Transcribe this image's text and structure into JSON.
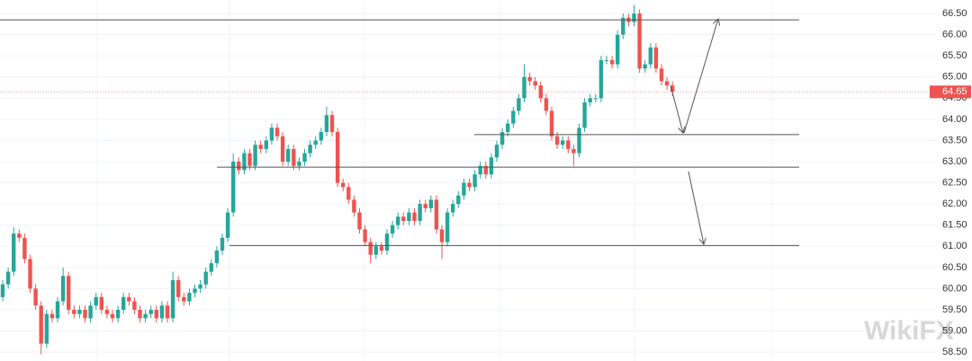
{
  "chart_data": {
    "type": "candlestick",
    "open": [
      59.8,
      60.1,
      60.4,
      61.3,
      61.2,
      60.7,
      60.0,
      59.6,
      58.7,
      59.4,
      59.3,
      59.7,
      60.3,
      59.5,
      59.4,
      59.5,
      59.3,
      59.6,
      59.8,
      59.5,
      59.4,
      59.3,
      59.5,
      59.8,
      59.7,
      59.5,
      59.3,
      59.4,
      59.5,
      59.3,
      59.6,
      59.3,
      60.2,
      59.8,
      59.7,
      59.9,
      60.0,
      60.1,
      60.4,
      60.6,
      60.9,
      61.2,
      61.8,
      63.0,
      62.8,
      63.2,
      62.9,
      63.4,
      63.3,
      63.5,
      63.8,
      63.6,
      63.0,
      63.3,
      62.9,
      63.0,
      63.2,
      63.4,
      63.5,
      63.7,
      64.1,
      63.7,
      62.5,
      62.4,
      62.1,
      61.8,
      61.4,
      61.1,
      60.8,
      61.0,
      60.9,
      61.3,
      61.5,
      61.7,
      61.6,
      61.8,
      61.6,
      62.0,
      61.9,
      62.1,
      61.4,
      61.1,
      61.8,
      62.0,
      62.2,
      62.5,
      62.4,
      62.7,
      62.9,
      62.7,
      63.1,
      63.4,
      63.7,
      63.9,
      64.2,
      64.5,
      65.0,
      64.9,
      64.8,
      64.5,
      64.2,
      63.6,
      63.4,
      63.5,
      63.3,
      63.2,
      63.8,
      64.4,
      64.5,
      64.5,
      65.4,
      65.4,
      65.3,
      66.0,
      66.4,
      66.3,
      66.5,
      65.2,
      65.3,
      65.7,
      65.2,
      64.9,
      64.8
    ],
    "high": [
      60.2,
      60.5,
      61.45,
      61.4,
      61.3,
      60.8,
      60.1,
      59.7,
      59.5,
      59.5,
      59.8,
      60.5,
      60.4,
      59.6,
      59.6,
      59.6,
      59.7,
      59.9,
      59.9,
      59.6,
      59.5,
      59.6,
      59.9,
      59.9,
      59.8,
      59.6,
      59.5,
      59.6,
      59.6,
      59.7,
      59.7,
      60.4,
      60.3,
      59.9,
      60.0,
      60.1,
      60.2,
      60.5,
      60.7,
      61.0,
      61.3,
      61.9,
      63.2,
      63.1,
      63.3,
      63.3,
      63.5,
      63.5,
      63.6,
      63.9,
      63.9,
      63.7,
      63.4,
      63.4,
      63.1,
      63.3,
      63.5,
      63.6,
      63.8,
      64.3,
      64.2,
      63.8,
      62.6,
      62.5,
      62.2,
      61.9,
      61.5,
      61.2,
      61.1,
      61.1,
      61.4,
      61.6,
      61.8,
      61.8,
      61.9,
      61.9,
      62.1,
      62.1,
      62.2,
      62.2,
      61.5,
      61.9,
      62.1,
      62.3,
      62.6,
      62.6,
      62.8,
      63.0,
      63.0,
      63.2,
      63.5,
      63.8,
      64.0,
      64.3,
      64.6,
      65.3,
      65.1,
      65.0,
      64.9,
      64.6,
      64.3,
      63.7,
      63.6,
      63.6,
      63.4,
      63.9,
      64.5,
      64.6,
      64.6,
      65.5,
      65.5,
      65.5,
      66.1,
      66.5,
      66.5,
      66.7,
      66.6,
      65.4,
      65.8,
      65.8,
      65.3,
      65.0,
      64.9
    ],
    "low": [
      59.7,
      60.0,
      60.3,
      61.1,
      60.6,
      59.9,
      59.5,
      58.45,
      58.6,
      59.2,
      59.2,
      59.6,
      59.4,
      59.3,
      59.3,
      59.2,
      59.2,
      59.5,
      59.4,
      59.3,
      59.2,
      59.2,
      59.4,
      59.6,
      59.4,
      59.2,
      59.2,
      59.3,
      59.2,
      59.2,
      59.2,
      59.2,
      59.7,
      59.6,
      59.6,
      59.8,
      59.9,
      60.0,
      60.3,
      60.5,
      60.8,
      61.1,
      61.7,
      62.7,
      62.7,
      62.8,
      62.8,
      63.2,
      63.2,
      63.4,
      63.5,
      62.9,
      62.9,
      62.8,
      62.8,
      62.9,
      63.1,
      63.3,
      63.4,
      63.6,
      63.6,
      62.4,
      62.3,
      62.0,
      61.7,
      61.3,
      61.0,
      60.6,
      60.7,
      60.8,
      60.8,
      61.2,
      61.4,
      61.5,
      61.5,
      61.5,
      61.5,
      61.8,
      61.8,
      61.3,
      60.7,
      61.0,
      61.7,
      61.9,
      62.1,
      62.3,
      62.3,
      62.6,
      62.6,
      62.6,
      63.0,
      63.3,
      63.6,
      63.8,
      64.1,
      64.4,
      64.8,
      64.7,
      64.4,
      64.1,
      63.5,
      63.3,
      63.3,
      63.2,
      62.9,
      63.1,
      63.7,
      64.3,
      64.4,
      64.4,
      65.3,
      65.2,
      65.2,
      65.9,
      66.2,
      66.2,
      65.1,
      65.1,
      65.2,
      65.1,
      64.8,
      64.7,
      64.55
    ],
    "close": [
      60.1,
      60.4,
      61.3,
      61.2,
      60.7,
      60.0,
      59.6,
      58.7,
      59.4,
      59.3,
      59.7,
      60.3,
      59.5,
      59.4,
      59.5,
      59.3,
      59.6,
      59.8,
      59.5,
      59.4,
      59.3,
      59.5,
      59.8,
      59.7,
      59.5,
      59.3,
      59.4,
      59.5,
      59.3,
      59.6,
      59.3,
      60.2,
      59.8,
      59.7,
      59.9,
      60.0,
      60.1,
      60.4,
      60.6,
      60.9,
      61.2,
      61.8,
      63.0,
      62.8,
      63.2,
      62.9,
      63.4,
      63.3,
      63.5,
      63.8,
      63.6,
      63.0,
      63.3,
      62.9,
      63.0,
      63.2,
      63.4,
      63.5,
      63.7,
      64.1,
      63.7,
      62.5,
      62.4,
      62.1,
      61.8,
      61.4,
      61.1,
      60.8,
      61.0,
      60.9,
      61.3,
      61.5,
      61.7,
      61.6,
      61.8,
      61.6,
      62.0,
      61.9,
      62.1,
      61.4,
      61.1,
      61.8,
      62.0,
      62.2,
      62.5,
      62.4,
      62.7,
      62.9,
      62.7,
      63.1,
      63.4,
      63.7,
      63.9,
      64.2,
      64.5,
      65.0,
      64.9,
      64.8,
      64.5,
      64.2,
      63.6,
      63.4,
      63.5,
      63.3,
      63.2,
      63.8,
      64.4,
      64.5,
      64.5,
      65.4,
      65.4,
      65.3,
      66.0,
      66.4,
      66.3,
      66.5,
      65.2,
      65.3,
      65.7,
      65.2,
      64.9,
      64.8,
      64.65
    ],
    "up_color": "#26a69a",
    "down_color": "#ef5350",
    "ylim": [
      58.29,
      66.82
    ],
    "yticks": [
      {
        "value": 58.5,
        "label": "58.50"
      },
      {
        "value": 59,
        "label": "59.00"
      },
      {
        "value": 59.5,
        "label": "59.50"
      },
      {
        "value": 60,
        "label": "60.00"
      },
      {
        "value": 60.5,
        "label": "60.50"
      },
      {
        "value": 61,
        "label": "61.00"
      },
      {
        "value": 61.5,
        "label": "61.50"
      },
      {
        "value": 62,
        "label": "62.00"
      },
      {
        "value": 62.5,
        "label": "62.50"
      },
      {
        "value": 63,
        "label": "63.00"
      },
      {
        "value": 63.5,
        "label": "63.50"
      },
      {
        "value": 64,
        "label": "64.00"
      },
      {
        "value": 64.5,
        "label": "64.50"
      },
      {
        "value": 65,
        "label": "65.00"
      },
      {
        "value": 65.5,
        "label": "65.50"
      },
      {
        "value": 66,
        "label": "66.00"
      },
      {
        "value": 66.5,
        "label": "66.50"
      }
    ],
    "grid": true,
    "last_price": 64.65,
    "levels": [
      66.35,
      63.64,
      62.87,
      61.02
    ],
    "watermark": "WikiFX"
  }
}
